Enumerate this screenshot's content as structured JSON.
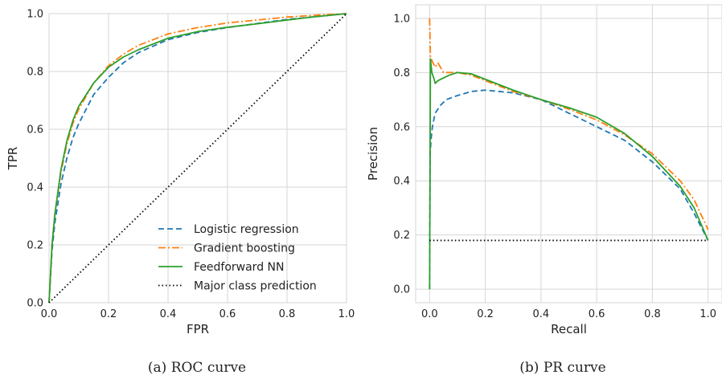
{
  "captions": {
    "roc": "(a) ROC curve",
    "pr": "(b) PR curve"
  },
  "chart_data": [
    {
      "type": "line",
      "xlabel": "FPR",
      "ylabel": "TPR",
      "xlim": [
        0,
        1
      ],
      "ylim": [
        0,
        1
      ],
      "xticks": [
        "0.0",
        "0.2",
        "0.4",
        "0.6",
        "0.8",
        "1.0"
      ],
      "yticks": [
        "0.0",
        "0.2",
        "0.4",
        "0.6",
        "0.8",
        "1.0"
      ],
      "grid": true,
      "legend_position": "bottom-right",
      "series": [
        {
          "name": "Logistic regression",
          "color": "#1f77b4",
          "style": "dashed",
          "x": [
            0,
            0.01,
            0.02,
            0.04,
            0.06,
            0.08,
            0.1,
            0.15,
            0.2,
            0.25,
            0.3,
            0.4,
            0.5,
            0.6,
            0.7,
            0.8,
            0.9,
            1.0
          ],
          "y": [
            0,
            0.18,
            0.28,
            0.41,
            0.5,
            0.57,
            0.62,
            0.72,
            0.78,
            0.83,
            0.865,
            0.91,
            0.935,
            0.952,
            0.966,
            0.98,
            0.99,
            1.0
          ]
        },
        {
          "name": "Gradient boosting",
          "color": "#ff7f0e",
          "style": "dashdot",
          "x": [
            0,
            0.01,
            0.02,
            0.04,
            0.06,
            0.08,
            0.1,
            0.15,
            0.2,
            0.25,
            0.3,
            0.4,
            0.5,
            0.6,
            0.7,
            0.8,
            0.9,
            1.0
          ],
          "y": [
            0,
            0.2,
            0.31,
            0.45,
            0.55,
            0.62,
            0.67,
            0.76,
            0.82,
            0.86,
            0.89,
            0.93,
            0.952,
            0.968,
            0.978,
            0.988,
            0.995,
            1.0
          ]
        },
        {
          "name": "Feedforward NN",
          "color": "#2ca02c",
          "style": "solid",
          "x": [
            0,
            0.01,
            0.02,
            0.04,
            0.06,
            0.08,
            0.1,
            0.15,
            0.2,
            0.25,
            0.3,
            0.4,
            0.5,
            0.6,
            0.7,
            0.8,
            0.9,
            1.0
          ],
          "y": [
            0,
            0.2,
            0.31,
            0.46,
            0.56,
            0.63,
            0.68,
            0.76,
            0.815,
            0.85,
            0.875,
            0.915,
            0.938,
            0.953,
            0.965,
            0.978,
            0.99,
            1.0
          ]
        },
        {
          "name": "Major class prediction",
          "color": "#000000",
          "style": "dotted",
          "x": [
            0,
            1
          ],
          "y": [
            0,
            1
          ]
        }
      ]
    },
    {
      "type": "line",
      "xlabel": "Recall",
      "ylabel": "Precision",
      "xlim": [
        -0.05,
        1.05
      ],
      "ylim": [
        -0.05,
        1.05
      ],
      "xticks": [
        "0.0",
        "0.2",
        "0.4",
        "0.6",
        "0.8",
        "1.0"
      ],
      "yticks": [
        "0.0",
        "0.2",
        "0.4",
        "0.6",
        "0.8",
        "1.0"
      ],
      "grid": true,
      "series": [
        {
          "name": "Logistic regression",
          "color": "#1f77b4",
          "style": "dashed",
          "x": [
            0,
            0.002,
            0.005,
            0.01,
            0.02,
            0.04,
            0.06,
            0.1,
            0.15,
            0.2,
            0.3,
            0.4,
            0.5,
            0.6,
            0.7,
            0.8,
            0.9,
            0.95,
            1.0
          ],
          "y": [
            0.0,
            0.5,
            0.55,
            0.6,
            0.65,
            0.68,
            0.7,
            0.715,
            0.73,
            0.735,
            0.725,
            0.7,
            0.65,
            0.6,
            0.55,
            0.47,
            0.37,
            0.28,
            0.18
          ]
        },
        {
          "name": "Gradient boosting",
          "color": "#ff7f0e",
          "style": "dashdot",
          "x": [
            0,
            0.003,
            0.01,
            0.02,
            0.03,
            0.05,
            0.07,
            0.1,
            0.15,
            0.2,
            0.3,
            0.4,
            0.5,
            0.6,
            0.7,
            0.8,
            0.9,
            0.95,
            1.0
          ],
          "y": [
            1.0,
            0.86,
            0.84,
            0.82,
            0.835,
            0.8,
            0.8,
            0.8,
            0.79,
            0.77,
            0.73,
            0.7,
            0.665,
            0.625,
            0.57,
            0.5,
            0.4,
            0.33,
            0.22
          ]
        },
        {
          "name": "Feedforward NN",
          "color": "#2ca02c",
          "style": "solid",
          "x": [
            0,
            0.003,
            0.008,
            0.015,
            0.02,
            0.03,
            0.05,
            0.07,
            0.1,
            0.15,
            0.2,
            0.3,
            0.4,
            0.5,
            0.6,
            0.7,
            0.8,
            0.9,
            0.95,
            1.0
          ],
          "y": [
            0.0,
            0.85,
            0.8,
            0.78,
            0.76,
            0.77,
            0.78,
            0.79,
            0.8,
            0.795,
            0.775,
            0.735,
            0.7,
            0.67,
            0.635,
            0.575,
            0.49,
            0.38,
            0.3,
            0.18
          ]
        },
        {
          "name": "Major class prediction",
          "color": "#000000",
          "style": "dotted",
          "x": [
            0,
            1
          ],
          "y": [
            0.18,
            0.18
          ]
        }
      ]
    }
  ]
}
